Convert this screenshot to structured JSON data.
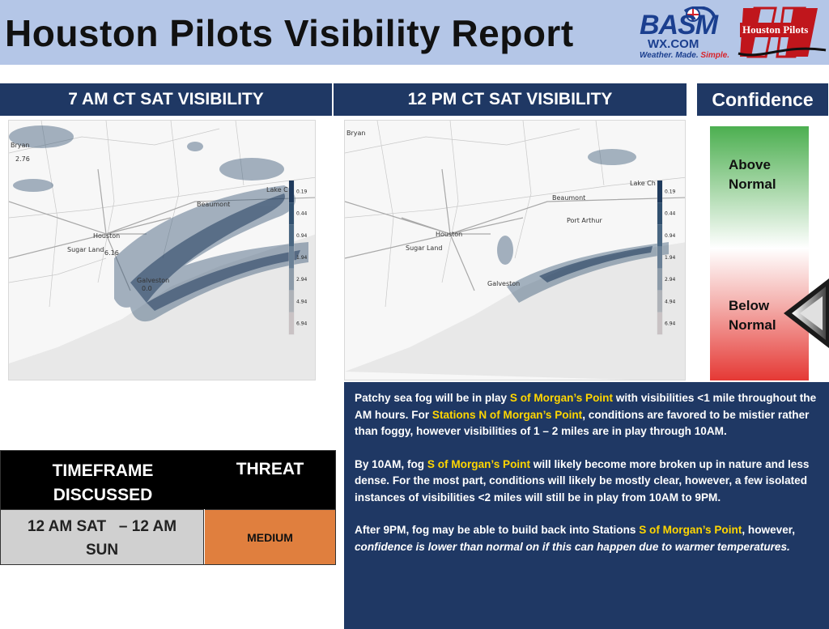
{
  "header": {
    "title": "Houston Pilots Visibility Report",
    "bg_color": "#b4c6e7"
  },
  "logos": {
    "basm": {
      "mark": "BASM",
      "domain": "WX.COM",
      "tagline_main": "Weather. Made. ",
      "tagline_accent": "Simple."
    },
    "houston_pilots": {
      "text": "Houston Pilots"
    }
  },
  "panels": {
    "left_title": "7 AM CT SAT VISIBILITY",
    "mid_title": "12 PM CT SAT VISIBILITY",
    "right_title": "Confidence"
  },
  "map_left": {
    "labels": {
      "bryan": "Bryan",
      "bryan_val": "2.76",
      "beaumont": "Beaumont",
      "lake": "Lake C",
      "houston": "Houston",
      "sugar_land": "Sugar Land",
      "houston_val": "6.16",
      "galveston": "Galveston",
      "galveston_val": "0.0"
    }
  },
  "map_mid": {
    "labels": {
      "bryan": "Bryan",
      "beaumont": "Beaumont",
      "lake": "Lake Ch",
      "port_arthur": "Port Arthur",
      "houston": "Houston",
      "sugar_land": "Sugar Land",
      "galveston": "Galveston"
    }
  },
  "colorbar": {
    "ticks": [
      "0.19",
      "0.44",
      "0.94",
      "1.94",
      "2.94",
      "4.94",
      "6.94"
    ],
    "colors": [
      "#1f3a5c",
      "#31506f",
      "#4a6782",
      "#6a8096",
      "#8c9aa8",
      "#aeb2b8",
      "#c9c2c4"
    ]
  },
  "confidence": {
    "above_1": "Above",
    "above_2": "Normal",
    "below_1": "Below",
    "below_2": "Normal",
    "selected": "Below Normal",
    "colors": {
      "top": "#4caf50",
      "bottom": "#e53935"
    }
  },
  "table": {
    "col1_header_1": "TIMEFRAME",
    "col1_header_2": "DISCUSSED",
    "col2_header": "THREAT",
    "timeframe_1": "12 AM SAT   – 12 AM",
    "timeframe_2": "SUN",
    "threat": "MEDIUM",
    "threat_color": "#e07f3e"
  },
  "discussion": {
    "p1_a": "Patchy sea fog will be in play ",
    "p1_hl1": "S of Morgan’s Point",
    "p1_b": " with visibilities <1 mile throughout the AM hours. For ",
    "p1_hl2": "Stations N of Morgan’s Point",
    "p1_c": ", conditions are favored to be mistier rather than foggy, however visibilities of 1 – 2 miles are in play through 10AM.",
    "p2_a": "By 10AM, fog ",
    "p2_hl1": "S of Morgan’s Point",
    "p2_b": " will likely become more broken up in nature and less dense. For the most part, conditions will likely be mostly clear, however, a few isolated instances of visibilities <2 miles will still be in play from 10AM to 9PM.",
    "p3_a": "After 9PM, fog may be able to build back into Stations ",
    "p3_hl1": "S of Morgan’s Point",
    "p3_b": ", however, ",
    "p3_it": "confidence is lower than normal on if this can happen due to warmer temperatures.",
    "highlight_color": "#ffd600"
  }
}
